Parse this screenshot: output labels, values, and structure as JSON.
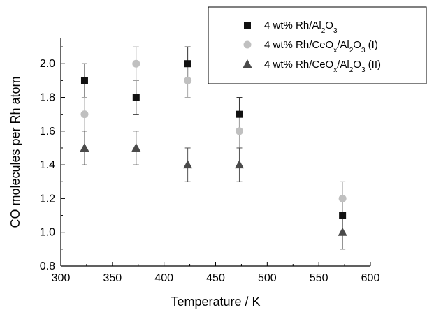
{
  "chart_data": {
    "type": "scatter",
    "xlabel": "Temperature / K",
    "ylabel": "CO molecules per Rh atom",
    "xlim": [
      300,
      600
    ],
    "ylim": [
      0.8,
      2.15
    ],
    "xticks": [
      300,
      350,
      400,
      450,
      500,
      550,
      600
    ],
    "yticks": [
      0.8,
      1.0,
      1.2,
      1.4,
      1.6,
      1.8,
      2.0
    ],
    "xtick_labels": [
      "300",
      "350",
      "400",
      "450",
      "500",
      "550",
      "600"
    ],
    "ytick_labels": [
      "0.8",
      "1.0",
      "1.2",
      "1.4",
      "1.6",
      "1.8",
      "2.0"
    ],
    "grid": false,
    "legend_position": "top-right",
    "series": [
      {
        "name": "4 wt% Rh/Al2O3",
        "legend_parts": [
          {
            "t": "4 wt% Rh/Al",
            "sub": false
          },
          {
            "t": "2",
            "sub": true
          },
          {
            "t": "O",
            "sub": false
          },
          {
            "t": "3",
            "sub": true
          }
        ],
        "marker": "square",
        "color": "#111111",
        "x": [
          323,
          373,
          423,
          473,
          573
        ],
        "y": [
          1.9,
          1.8,
          2.0,
          1.7,
          1.1
        ],
        "err": [
          0.1,
          0.1,
          0.1,
          0.1,
          0.1
        ]
      },
      {
        "name": "4 wt% Rh/CeOx/Al2O3 (I)",
        "legend_parts": [
          {
            "t": "4 wt% Rh/CeO",
            "sub": false
          },
          {
            "t": "x",
            "sub": true
          },
          {
            "t": "/Al",
            "sub": false
          },
          {
            "t": "2",
            "sub": true
          },
          {
            "t": "O",
            "sub": false
          },
          {
            "t": "3",
            "sub": true
          },
          {
            "t": " (I)",
            "sub": false
          }
        ],
        "marker": "circle",
        "color": "#c0c0c0",
        "x": [
          323,
          373,
          423,
          473,
          573
        ],
        "y": [
          1.7,
          2.0,
          1.9,
          1.6,
          1.2
        ],
        "err": [
          0.1,
          0.1,
          0.1,
          0.1,
          0.1
        ]
      },
      {
        "name": "4 wt% Rh/CeOx/Al2O3 (II)",
        "legend_parts": [
          {
            "t": "4 wt% Rh/CeO",
            "sub": false
          },
          {
            "t": "x",
            "sub": true
          },
          {
            "t": "/Al",
            "sub": false
          },
          {
            "t": "2",
            "sub": true
          },
          {
            "t": "O",
            "sub": false
          },
          {
            "t": "3",
            "sub": true
          },
          {
            "t": " (II)",
            "sub": false
          }
        ],
        "marker": "triangle",
        "color": "#4a4a4a",
        "x": [
          323,
          373,
          423,
          473,
          573
        ],
        "y": [
          1.5,
          1.5,
          1.4,
          1.4,
          1.0
        ],
        "err": [
          0.1,
          0.1,
          0.1,
          0.1,
          0.1
        ]
      }
    ]
  }
}
